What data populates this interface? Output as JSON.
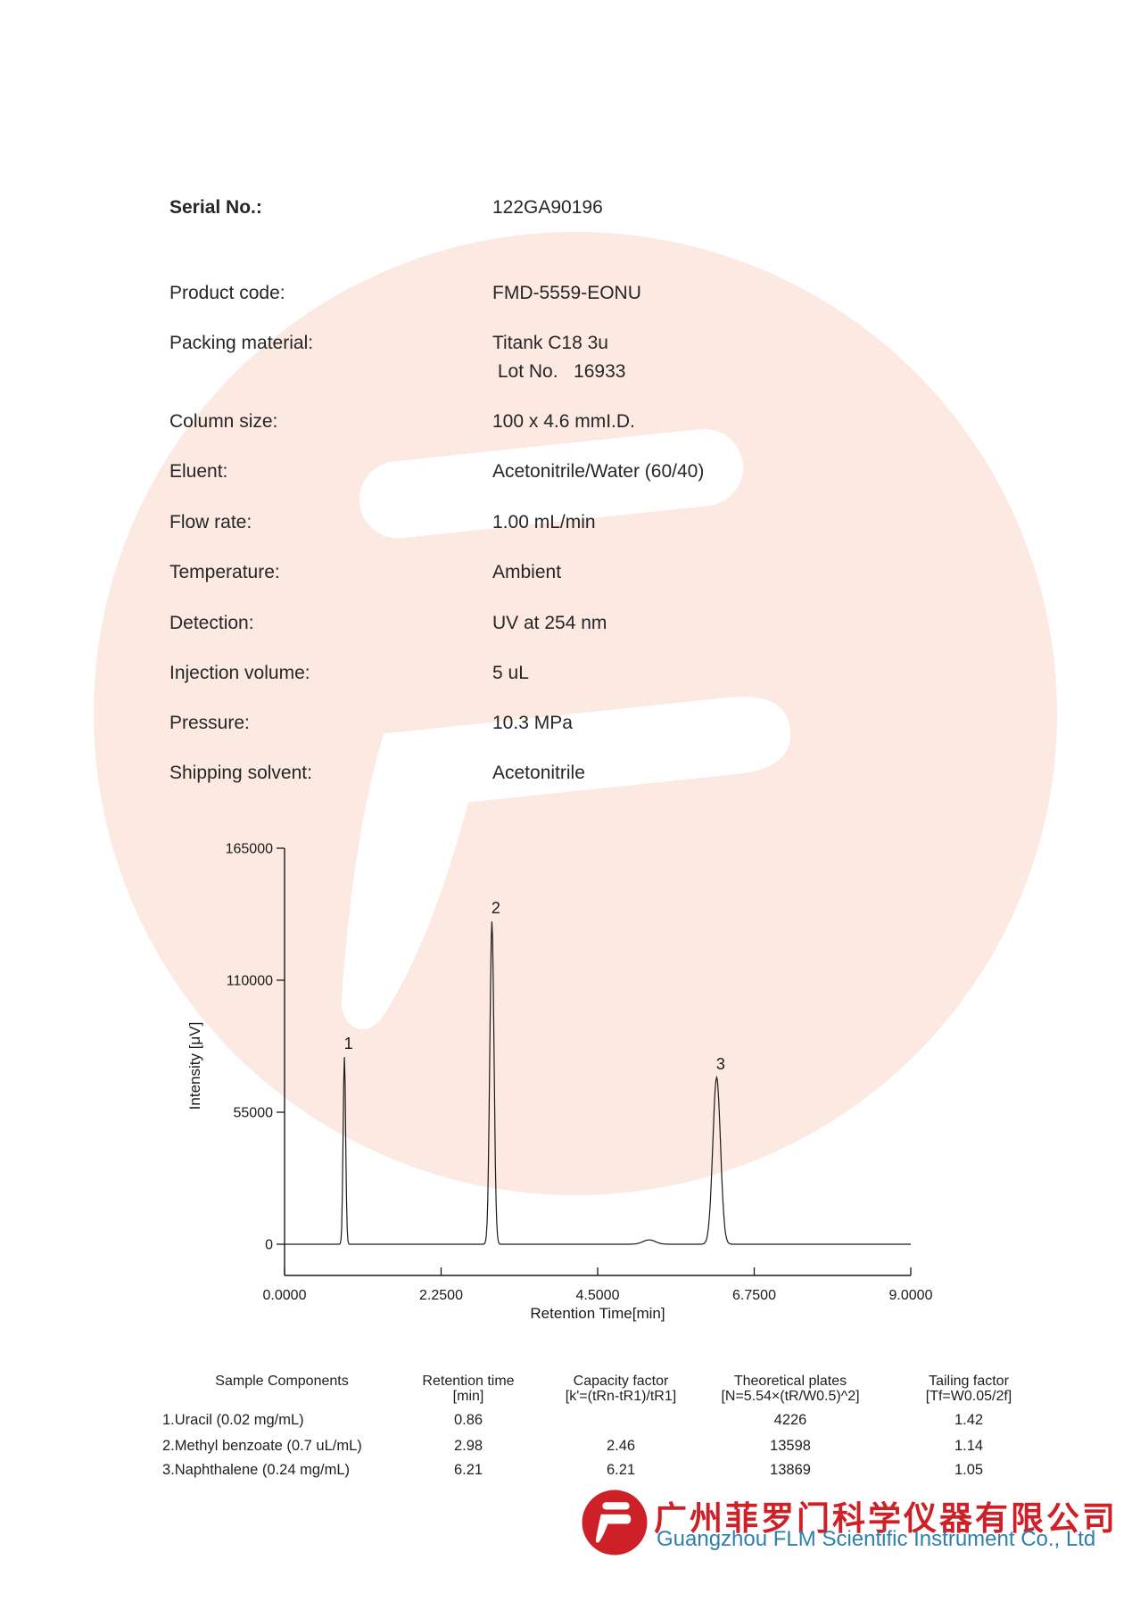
{
  "brand": {
    "red": "#cd2127",
    "blue": "#2e7fae",
    "watermark_pink": "#fbe9e2",
    "text_black": "#1f1f1f"
  },
  "header": {
    "serial_label": "Serial No.:",
    "serial_value": "122GA90196"
  },
  "specs": [
    {
      "label": "Product code:",
      "value": "FMD-5559-EONU"
    },
    {
      "label": "Packing material:",
      "value": "Titank C18 3u",
      "value2": " Lot No.   16933"
    },
    {
      "label": "Column size:",
      "value": "100 x 4.6 mmI.D."
    },
    {
      "label": "Eluent:",
      "value": "Acetonitrile/Water (60/40)"
    },
    {
      "label": "Flow rate:",
      "value": "1.00 mL/min"
    },
    {
      "label": "Temperature:",
      "value": "Ambient"
    },
    {
      "label": "Detection:",
      "value": "UV at 254 nm"
    },
    {
      "label": "Injection volume:",
      "value": "5 uL"
    },
    {
      "label": "Pressure:",
      "value": "10.3 MPa"
    },
    {
      "label": "Shipping solvent:",
      "value": "Acetonitrile"
    }
  ],
  "chart_data": {
    "type": "line",
    "title": "",
    "xlabel": "Retention Time[min]",
    "ylabel": "Intensity [μV]",
    "xlim": [
      0,
      9
    ],
    "ylim": [
      0,
      165000
    ],
    "x_tick_values": [
      0,
      2.25,
      4.5,
      6.75,
      9
    ],
    "x_tick_labels": [
      "0.0000",
      "2.2500",
      "4.5000",
      "6.7500",
      "9.0000"
    ],
    "y_tick_values": [
      0,
      55000,
      110000,
      165000
    ],
    "y_tick_labels": [
      "0",
      "55000",
      "110000",
      "165000"
    ],
    "grid": false,
    "legend": false,
    "line_color": "#1a1a1a",
    "peaks": [
      {
        "label": "1",
        "rt_min": 0.86,
        "height_uv": 78000,
        "sigma_min": 0.018
      },
      {
        "label": "2",
        "rt_min": 2.98,
        "height_uv": 134500,
        "sigma_min": 0.03
      },
      {
        "label": "3",
        "rt_min": 6.21,
        "height_uv": 69500,
        "sigma_min": 0.055
      },
      {
        "label": "",
        "rt_min": 5.24,
        "height_uv": 1800,
        "sigma_min": 0.09
      }
    ]
  },
  "results_table": {
    "columns": [
      {
        "line1": "Sample Components",
        "line2": ""
      },
      {
        "line1": "Retention time",
        "line2": "[min]"
      },
      {
        "line1": "Capacity factor",
        "line2": "[k'=(tRn-tR1)/tR1]"
      },
      {
        "line1": "Theoretical plates",
        "line2": "[N=5.54×(tR/W0.5)^2]"
      },
      {
        "line1": "Tailing factor",
        "line2": "[Tf=W0.05/2f]"
      }
    ],
    "rows": [
      [
        "1.Uracil (0.02 mg/mL)",
        "0.86",
        "",
        "4226",
        "1.42"
      ],
      [
        "2.Methyl benzoate (0.7 uL/mL)",
        "2.98",
        "2.46",
        "13598",
        "1.14"
      ],
      [
        "3.Naphthalene (0.24 mg/mL)",
        "6.21",
        "6.21",
        "13869",
        "1.05"
      ]
    ]
  },
  "footer": {
    "company_cn": "广州菲罗门科学仪器有限公司",
    "company_en": "Guangzhou FLM Scientific Instrument Co., Ltd"
  }
}
